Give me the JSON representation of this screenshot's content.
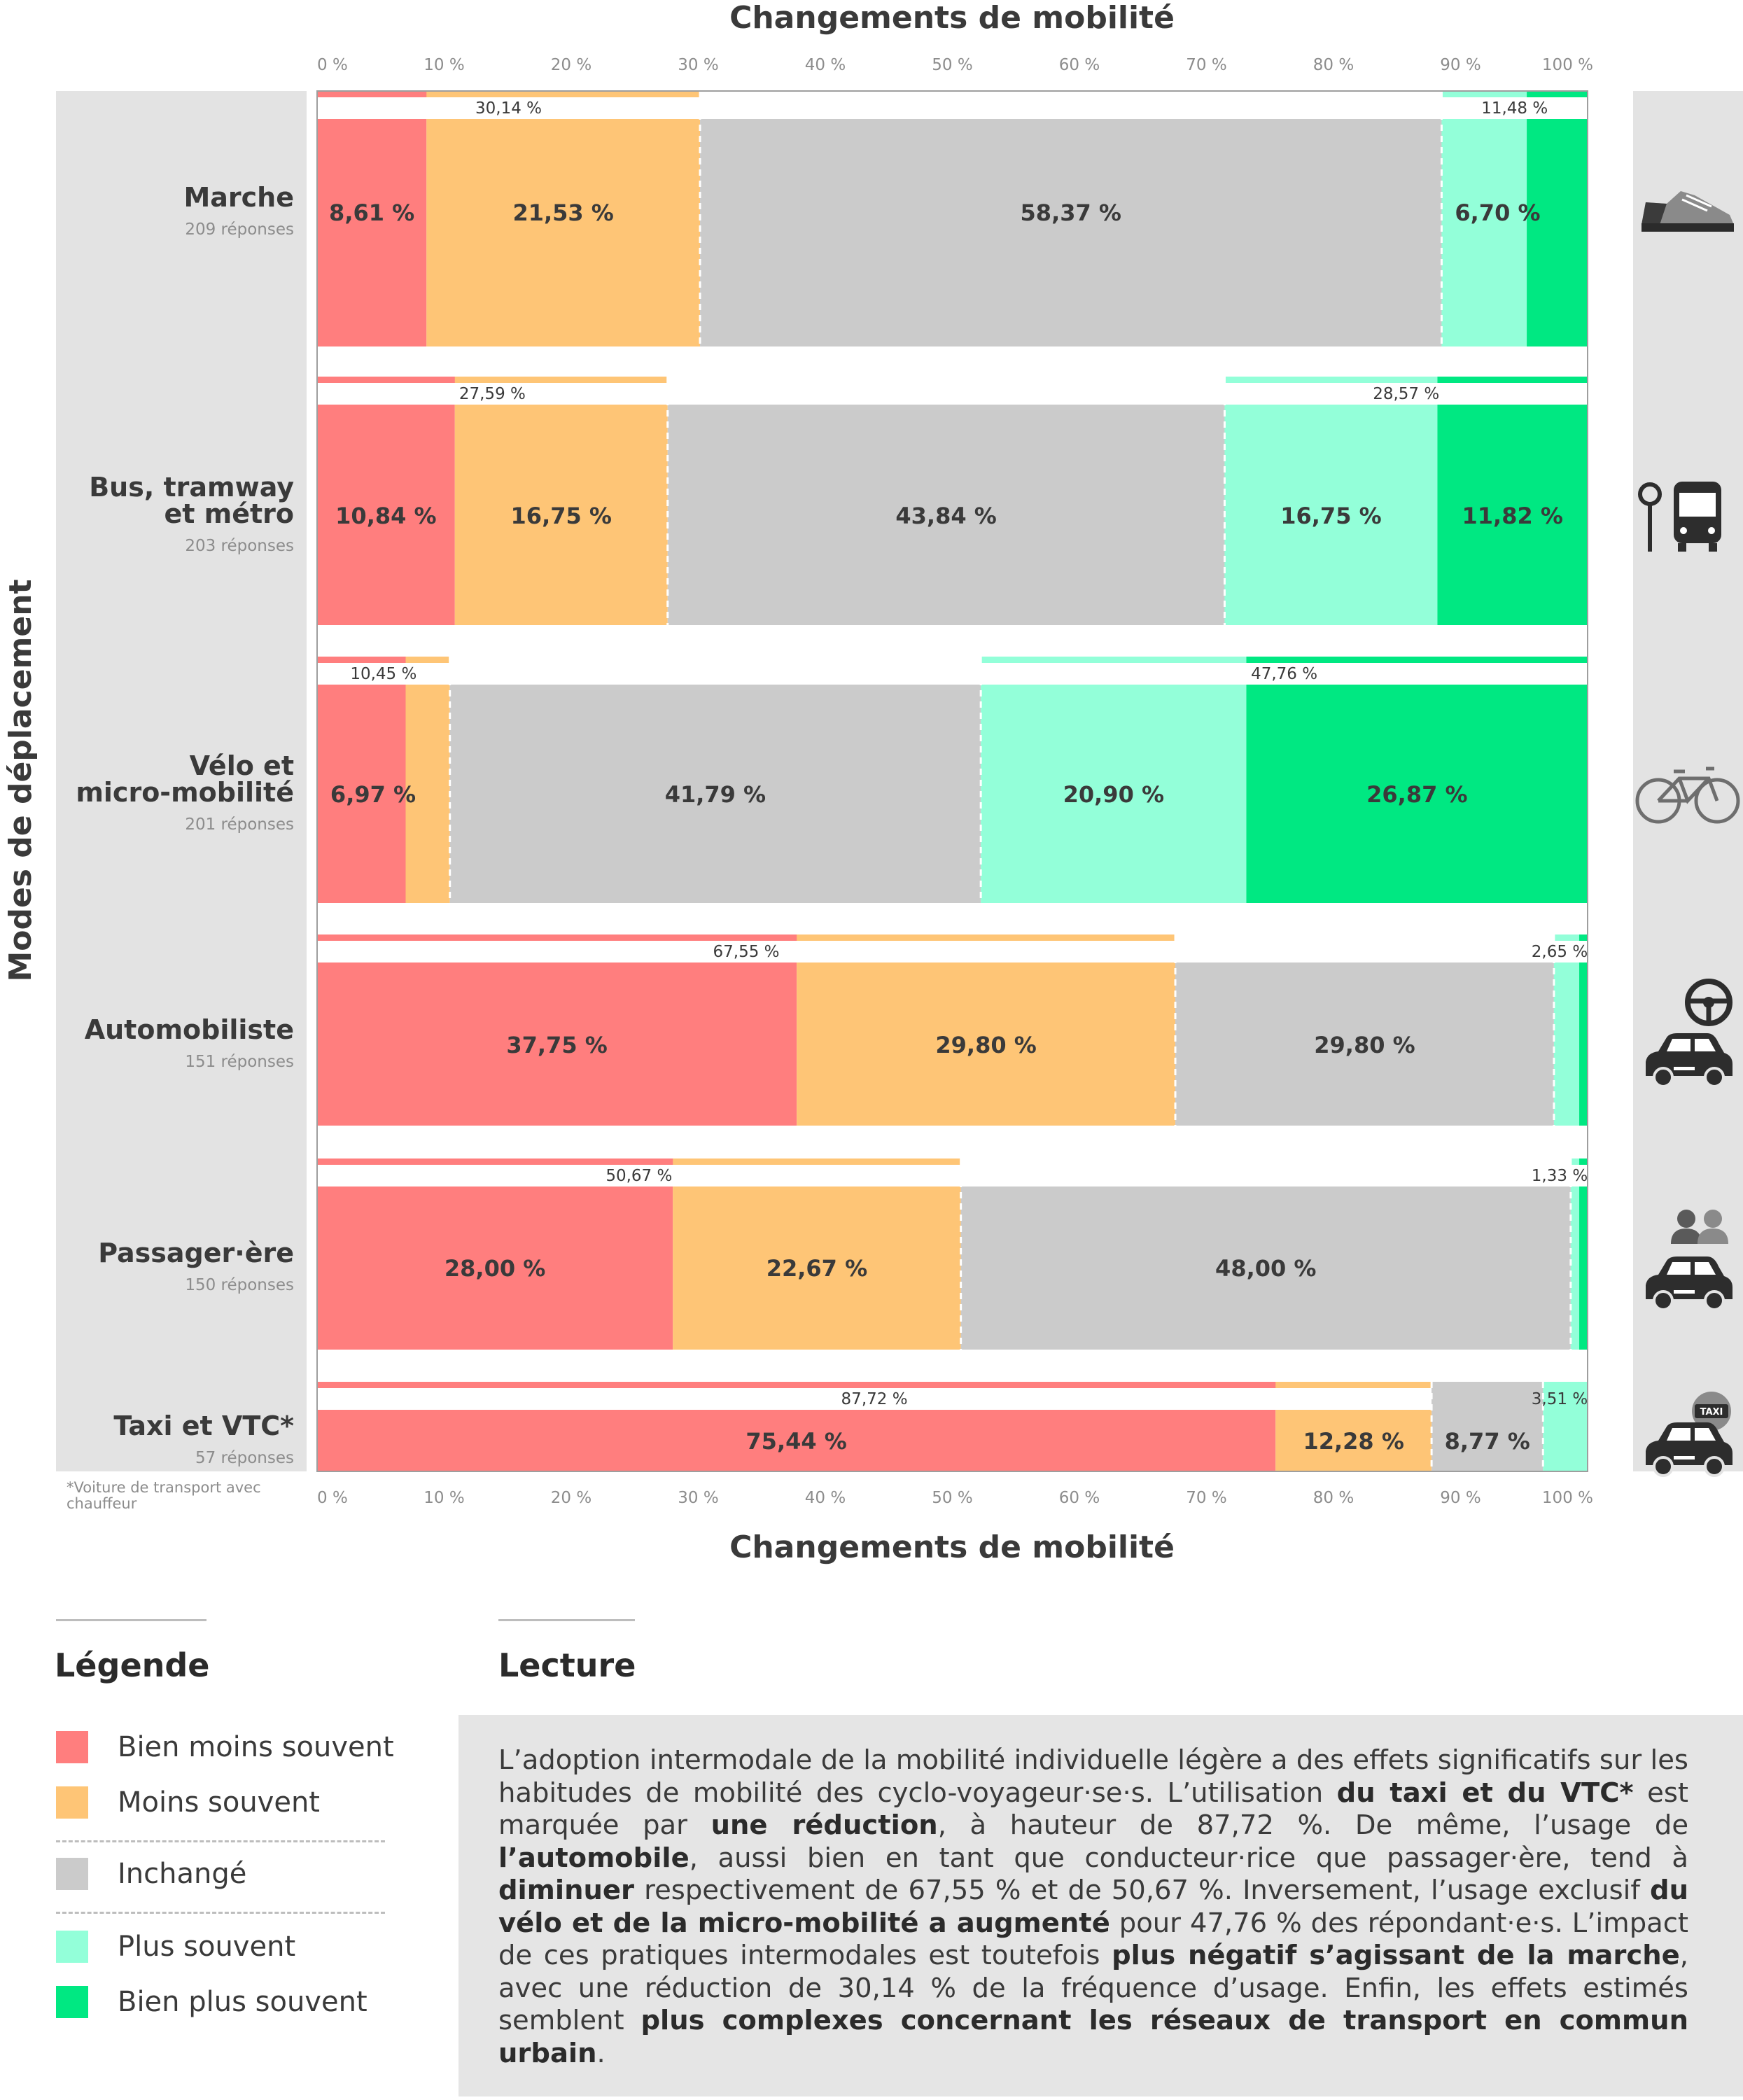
{
  "chart_data": {
    "type": "bar",
    "orientation": "horizontal",
    "stacked": true,
    "normalized": true,
    "title_top": "Changements de mobilité",
    "xlabel": "Changements de mobilité",
    "ylabel": "Modes de déplacement",
    "xlim": [
      0,
      100
    ],
    "x_ticks": [
      "0 %",
      "10 %",
      "20 %",
      "30 %",
      "40 %",
      "50 %",
      "60 %",
      "70 %",
      "80 %",
      "90 %",
      "100 %"
    ],
    "footnote": "*Voiture de transport avec chauffeur",
    "series": [
      {
        "key": "bien_moins",
        "name": "Bien moins souvent",
        "color": "#ff7e7e"
      },
      {
        "key": "moins",
        "name": "Moins souvent",
        "color": "#fec576"
      },
      {
        "key": "inchange",
        "name": "Inchangé",
        "color": "#cbcbcb"
      },
      {
        "key": "plus",
        "name": "Plus souvent",
        "color": "#93ffd9"
      },
      {
        "key": "bien_plus",
        "name": "Bien plus souvent",
        "color": "#00e882"
      }
    ],
    "categories": [
      {
        "name_lines": [
          "Marche"
        ],
        "responses": "209 réponses",
        "icon": "shoe-icon",
        "values": [
          8.61,
          21.53,
          58.37,
          6.7,
          4.78
        ],
        "labels": [
          "8,61 %",
          "21,53 %",
          "58,37 %",
          "6,70 %",
          ""
        ],
        "decrease_total": "30,14 %",
        "increase_total": "11,48 %"
      },
      {
        "name_lines": [
          "Bus, tramway",
          "et métro"
        ],
        "responses": "203 réponses",
        "icon": "bus-icon",
        "values": [
          10.84,
          16.75,
          43.84,
          16.75,
          11.82
        ],
        "labels": [
          "10,84 %",
          "16,75 %",
          "43,84 %",
          "16,75 %",
          "11,82 %"
        ],
        "decrease_total": "27,59 %",
        "increase_total": "28,57 %"
      },
      {
        "name_lines": [
          "Vélo et",
          "micro-mobilité"
        ],
        "responses": "201 réponses",
        "icon": "bicycle-icon",
        "values": [
          6.97,
          3.48,
          41.79,
          20.9,
          26.87
        ],
        "labels": [
          "6,97 %",
          "",
          "41,79 %",
          "20,90 %",
          "26,87 %"
        ],
        "decrease_total": "10,45 %",
        "increase_total": "47,76 %"
      },
      {
        "name_lines": [
          "Automobiliste"
        ],
        "responses": "151 réponses",
        "icon": "car-steering-wheel-icon",
        "values": [
          37.75,
          29.8,
          29.8,
          1.99,
          0.66
        ],
        "labels": [
          "37,75 %",
          "29,80 %",
          "29,80 %",
          "",
          ""
        ],
        "decrease_total": "67,55 %",
        "increase_total": "2,65 %"
      },
      {
        "name_lines": [
          "Passager·ère"
        ],
        "responses": "150 réponses",
        "icon": "car-passengers-icon",
        "values": [
          28.0,
          22.67,
          48.0,
          0.67,
          0.66
        ],
        "labels": [
          "28,00 %",
          "22,67 %",
          "48,00 %",
          "",
          ""
        ],
        "decrease_total": "50,67 %",
        "increase_total": "1,33 %"
      },
      {
        "name_lines": [
          "Taxi et VTC*"
        ],
        "responses": "57 réponses",
        "icon": "taxi-icon",
        "values": [
          75.44,
          12.28,
          8.77,
          3.51,
          0
        ],
        "labels": [
          "75,44 %",
          "12,28 %",
          "8,77 %",
          "",
          ""
        ],
        "decrease_total": "87,72 %",
        "increase_total": "3,51 %"
      }
    ]
  },
  "legend": {
    "title": "Légende",
    "items": [
      {
        "label": "Bien moins souvent",
        "color": "#ff7e7e"
      },
      {
        "label": "Moins souvent",
        "color": "#fec576"
      },
      {
        "label": "Inchangé",
        "color": "#cbcbcb"
      },
      {
        "label": "Plus souvent",
        "color": "#93ffd9"
      },
      {
        "label": "Bien plus souvent",
        "color": "#00e882"
      }
    ]
  },
  "lecture": {
    "title": "Lecture",
    "segments": [
      {
        "t": "L’adoption intermodale de la mobilité individuelle légère a des effets significatifs sur les habitudes de mobilité des cyclo-voyageur·se·s. L’utilisation "
      },
      {
        "t": "du taxi et du VTC*",
        "b": true
      },
      {
        "t": " est marquée par "
      },
      {
        "t": "une réduction",
        "b": true
      },
      {
        "t": ", à hauteur de 87,72 %. De même, l’usage de "
      },
      {
        "t": "l’automobile",
        "b": true
      },
      {
        "t": ", aussi bien en tant que conducteur·rice que passager·ère, tend à "
      },
      {
        "t": "diminuer",
        "b": true
      },
      {
        "t": " respectivement de 67,55 % et de 50,67 %. Inversement, l’usage exclusif "
      },
      {
        "t": "du vélo et de la micro-mobilité a augmenté",
        "b": true
      },
      {
        "t": " pour 47,76 % des répondant·e·s. L’impact de ces pratiques intermodales est toutefois "
      },
      {
        "t": "plus négatif s’agissant de la marche",
        "b": true
      },
      {
        "t": ", avec une réduction de 30,14 % de la fréquence d’usage. Enfin, les effets estimés semblent "
      },
      {
        "t": "plus complexes concernant les réseaux de transport en commun urbain",
        "b": true
      },
      {
        "t": "."
      }
    ]
  }
}
